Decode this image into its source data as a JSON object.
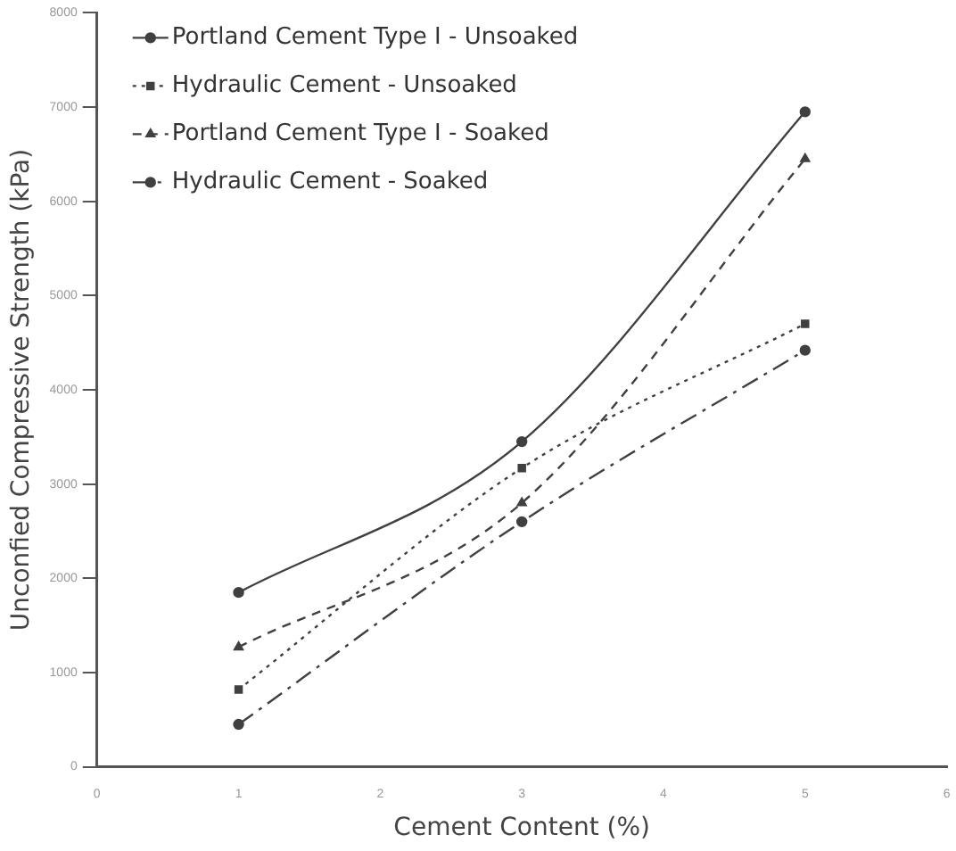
{
  "chart_data": {
    "type": "line",
    "xlabel": "Cement Content (%)",
    "ylabel": "Unconfied Compressive Strength (kPa)",
    "x": [
      1,
      3,
      5
    ],
    "series": [
      {
        "name": "Portland Cement Type I - Unsoaked",
        "color": "#404040",
        "values": [
          1850,
          3450,
          6950
        ],
        "marker": "circle",
        "line_style": "solid"
      },
      {
        "name": "Hydraulic Cement - Unsoaked",
        "color": "#404040",
        "values": [
          820,
          3170,
          4700
        ],
        "marker": "square",
        "line_style": "dotted"
      },
      {
        "name": "Portland Cement Type I - Soaked",
        "color": "#404040",
        "values": [
          1270,
          2800,
          6450
        ],
        "marker": "triangle",
        "line_style": "dashed"
      },
      {
        "name": "Hydraulic Cement - Soaked",
        "color": "#404040",
        "values": [
          450,
          2600,
          4420
        ],
        "marker": "circle",
        "line_style": "dashdot"
      }
    ],
    "xlim": [
      0,
      6
    ],
    "xticks": [
      0,
      1,
      2,
      3,
      4,
      5,
      6
    ],
    "ylim": [
      0,
      8000
    ],
    "yticks": [
      0,
      1000,
      2000,
      3000,
      4000,
      5000,
      6000,
      7000,
      8000
    ],
    "grid": false,
    "legend": "top left"
  }
}
